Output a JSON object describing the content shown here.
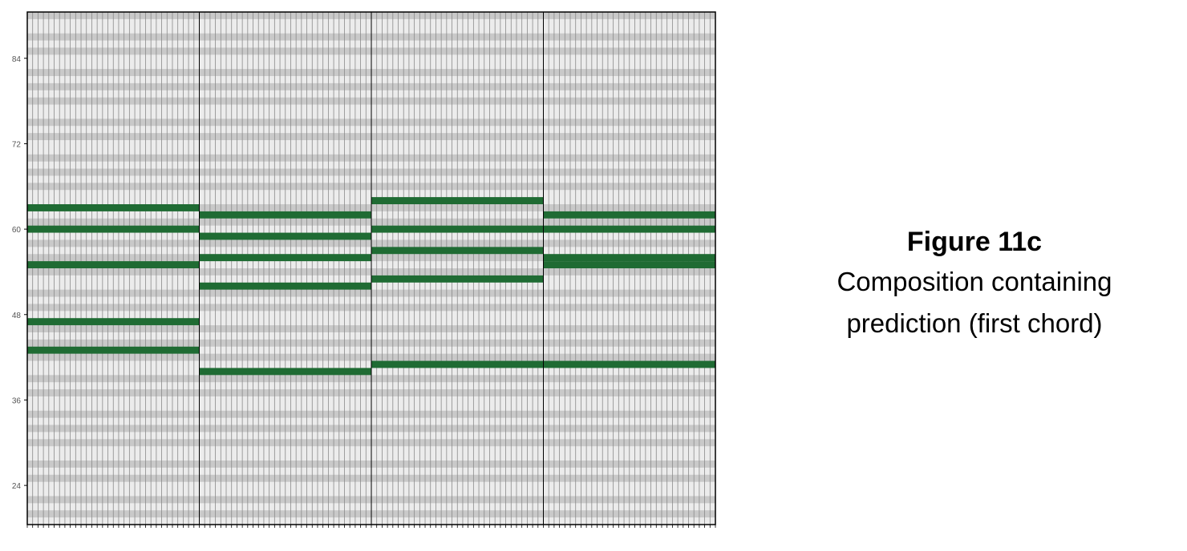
{
  "caption": {
    "title": "Figure 11c",
    "description_line1": "Composition containing",
    "description_line2": "prediction (first chord)"
  },
  "chart_data": {
    "type": "heatmap",
    "title": "",
    "xlabel": "",
    "ylabel": "",
    "y_ticks": [
      "84",
      "72",
      "60",
      "48",
      "36",
      "24"
    ],
    "y_tick_values": [
      84,
      72,
      60,
      48,
      36,
      24
    ],
    "ylim": [
      18.5,
      90.5
    ],
    "xlim": [
      0,
      128
    ],
    "x_bars": [
      0,
      32,
      64,
      96,
      128
    ],
    "grid": true,
    "colors": {
      "note": "#1f6b33",
      "background": "#ececec",
      "alt_row": "#c9c9c9",
      "bar_line": "#000000"
    },
    "notes": [
      {
        "pitch": 63,
        "start": 0,
        "end": 32
      },
      {
        "pitch": 60,
        "start": 0,
        "end": 32
      },
      {
        "pitch": 55,
        "start": 0,
        "end": 32
      },
      {
        "pitch": 47,
        "start": 0,
        "end": 32
      },
      {
        "pitch": 43,
        "start": 0,
        "end": 32
      },
      {
        "pitch": 62,
        "start": 32,
        "end": 64
      },
      {
        "pitch": 59,
        "start": 32,
        "end": 64
      },
      {
        "pitch": 56,
        "start": 32,
        "end": 64
      },
      {
        "pitch": 52,
        "start": 32,
        "end": 64
      },
      {
        "pitch": 40,
        "start": 32,
        "end": 64
      },
      {
        "pitch": 64,
        "start": 64,
        "end": 96
      },
      {
        "pitch": 60,
        "start": 64,
        "end": 96
      },
      {
        "pitch": 57,
        "start": 64,
        "end": 96
      },
      {
        "pitch": 53,
        "start": 64,
        "end": 96
      },
      {
        "pitch": 41,
        "start": 64,
        "end": 128
      },
      {
        "pitch": 62,
        "start": 96,
        "end": 128
      },
      {
        "pitch": 60,
        "start": 96,
        "end": 128
      },
      {
        "pitch": 56,
        "start": 96,
        "end": 128
      },
      {
        "pitch": 55,
        "start": 96,
        "end": 128
      }
    ]
  }
}
